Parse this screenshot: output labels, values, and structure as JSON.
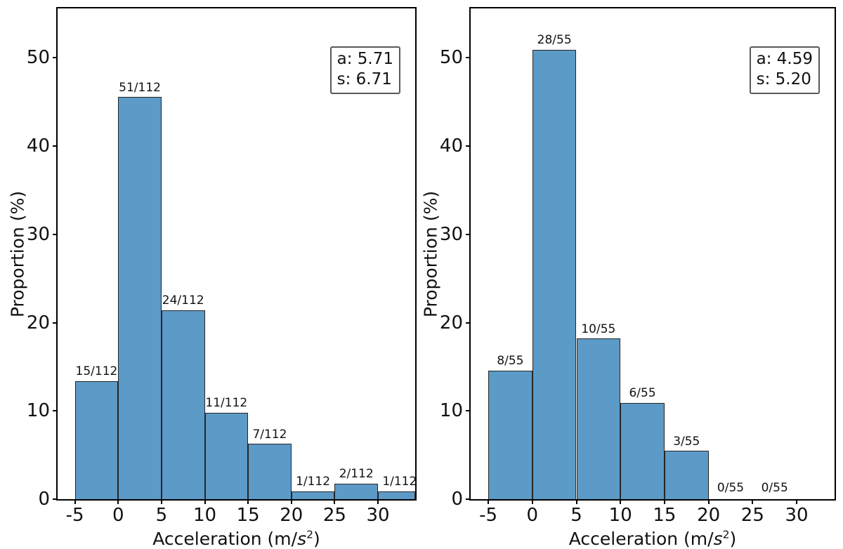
{
  "figure": {
    "background": "#ffffff",
    "bar_fill": "#5c9ac7",
    "bar_edge": "#262626",
    "spine_color": "#000000",
    "text_color": "#111111",
    "legend_border": "#595959"
  },
  "chart_data": [
    {
      "type": "bar",
      "subtype": "histogram",
      "title": "",
      "xlabel": {
        "pre": "Acceleration (m/",
        "var": "s",
        "sup": "2",
        "post": ")"
      },
      "ylabel": "Proportion (%)",
      "xlim": [
        -7,
        34.3
      ],
      "ylim": [
        0,
        55.6
      ],
      "xticks": [
        -5,
        0,
        5,
        10,
        15,
        20,
        25,
        30
      ],
      "yticks": [
        0,
        10,
        20,
        30,
        40,
        50
      ],
      "grid": false,
      "bin_width": 5,
      "bin_edges": [
        -5,
        0,
        5,
        10,
        15,
        20,
        25,
        30,
        35
      ],
      "counts": [
        15,
        51,
        24,
        11,
        7,
        1,
        2,
        1
      ],
      "total": 112,
      "percent": [
        13.39,
        45.54,
        21.43,
        9.82,
        6.25,
        0.89,
        1.79,
        0.89
      ],
      "bar_labels": [
        "15/112",
        "51/112",
        "24/112",
        "11/112",
        "7/112",
        "1/112",
        "2/112",
        "1/112"
      ],
      "annotation_box": {
        "line1": "a: 5.71",
        "line2": "s: 6.71",
        "position": "top-right"
      }
    },
    {
      "type": "bar",
      "subtype": "histogram",
      "title": "",
      "xlabel": {
        "pre": "Acceleration (m/",
        "var": "s",
        "sup": "2",
        "post": ")"
      },
      "ylabel": "Proportion (%)",
      "xlim": [
        -7,
        34.3
      ],
      "ylim": [
        0,
        55.6
      ],
      "xticks": [
        -5,
        0,
        5,
        10,
        15,
        20,
        25,
        30
      ],
      "yticks": [
        0,
        10,
        20,
        30,
        40,
        50
      ],
      "grid": false,
      "bin_width": 5,
      "bin_edges": [
        -5,
        0,
        5,
        10,
        15,
        20,
        25,
        30
      ],
      "counts": [
        8,
        28,
        10,
        6,
        3,
        0,
        0
      ],
      "total": 55,
      "percent": [
        14.55,
        50.91,
        18.18,
        10.91,
        5.45,
        0,
        0
      ],
      "bar_labels": [
        "8/55",
        "28/55",
        "10/55",
        "6/55",
        "3/55",
        "0/55",
        "0/55"
      ],
      "annotation_box": {
        "line1": "a: 4.59",
        "line2": "s: 5.20",
        "position": "top-right"
      }
    }
  ]
}
